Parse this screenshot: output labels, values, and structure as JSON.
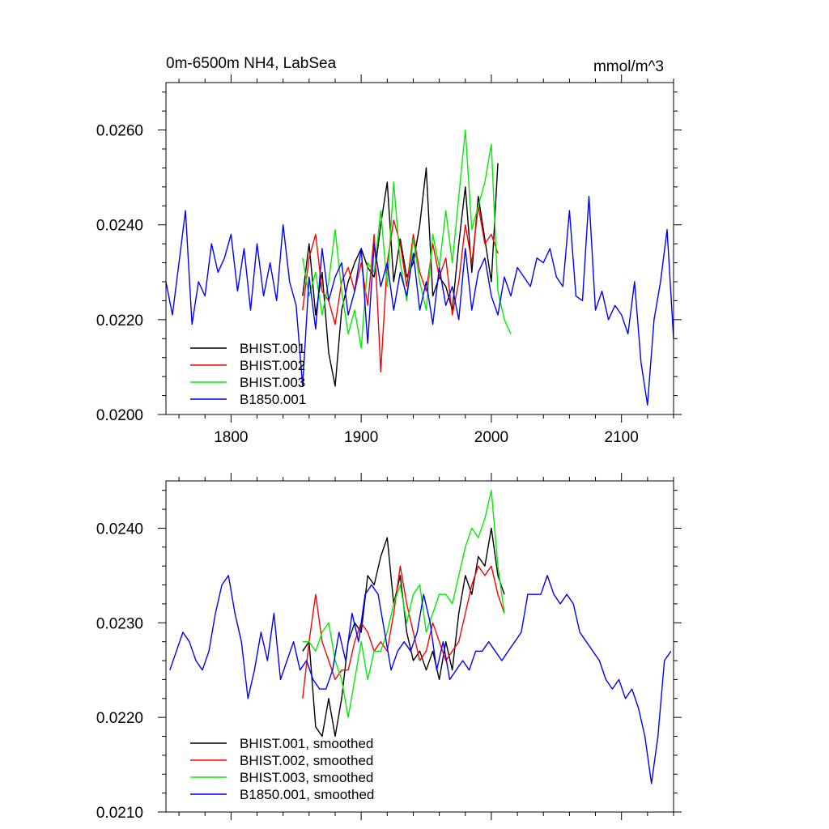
{
  "chart_data": [
    {
      "type": "line",
      "title_left": "0m-6500m NH4, LabSea",
      "title_right": "mmol/m^3",
      "xlabel": "",
      "ylabel": "",
      "xlim": [
        1750,
        2140
      ],
      "ylim": [
        0.02,
        0.027
      ],
      "x_ticks": [
        1800,
        1900,
        2000,
        2100
      ],
      "x_tick_labels": [
        "1800",
        "1900",
        "2000",
        "2100"
      ],
      "y_ticks": [
        0.02,
        0.022,
        0.024,
        0.026
      ],
      "y_tick_labels": [
        "0.0200",
        "0.0220",
        "0.0240",
        "0.0260"
      ],
      "grid": false,
      "legend_position": "bottom-left",
      "series": [
        {
          "name": "BHIST.001",
          "color": "#000000",
          "x": [
            1855,
            1860,
            1865,
            1870,
            1875,
            1880,
            1885,
            1890,
            1895,
            1900,
            1905,
            1910,
            1915,
            1920,
            1925,
            1930,
            1935,
            1940,
            1945,
            1950,
            1955,
            1960,
            1965,
            1970,
            1975,
            1980,
            1985,
            1990,
            1995,
            2000,
            2005
          ],
          "y": [
            0.0225,
            0.0236,
            0.0221,
            0.023,
            0.0213,
            0.0206,
            0.0222,
            0.0228,
            0.0232,
            0.0235,
            0.0231,
            0.0229,
            0.024,
            0.0249,
            0.0228,
            0.0237,
            0.0229,
            0.0232,
            0.024,
            0.0252,
            0.0225,
            0.0229,
            0.0227,
            0.0222,
            0.0236,
            0.0248,
            0.023,
            0.0246,
            0.0237,
            0.0228,
            0.0253
          ]
        },
        {
          "name": "BHIST.002",
          "color": "#ff0000",
          "x": [
            1855,
            1860,
            1865,
            1870,
            1875,
            1880,
            1885,
            1890,
            1895,
            1900,
            1905,
            1910,
            1915,
            1920,
            1925,
            1930,
            1935,
            1940,
            1945,
            1950,
            1955,
            1960,
            1965,
            1970,
            1975,
            1980,
            1985,
            1990,
            1995,
            2000,
            2005
          ],
          "y": [
            0.0222,
            0.0233,
            0.0238,
            0.0226,
            0.0224,
            0.0219,
            0.0228,
            0.0231,
            0.0226,
            0.0232,
            0.0223,
            0.0238,
            0.0209,
            0.0232,
            0.0241,
            0.0236,
            0.0227,
            0.0238,
            0.023,
            0.0226,
            0.0236,
            0.0229,
            0.0233,
            0.0221,
            0.0228,
            0.024,
            0.0232,
            0.0244,
            0.0236,
            0.0238,
            0.0234
          ]
        },
        {
          "name": "BHIST.003",
          "color": "#00ee00",
          "x": [
            1855,
            1860,
            1865,
            1870,
            1875,
            1880,
            1885,
            1890,
            1895,
            1900,
            1905,
            1910,
            1915,
            1920,
            1925,
            1930,
            1935,
            1940,
            1945,
            1950,
            1955,
            1960,
            1965,
            1970,
            1975,
            1980,
            1985,
            1990,
            1995,
            2000,
            2005,
            2010,
            2015
          ],
          "y": [
            0.0233,
            0.0225,
            0.023,
            0.0221,
            0.0228,
            0.0239,
            0.0226,
            0.0217,
            0.0222,
            0.0214,
            0.0232,
            0.023,
            0.0243,
            0.0227,
            0.0249,
            0.0232,
            0.0224,
            0.0237,
            0.0228,
            0.0222,
            0.0238,
            0.0231,
            0.0243,
            0.0232,
            0.0246,
            0.026,
            0.0239,
            0.0244,
            0.0249,
            0.0257,
            0.0226,
            0.022,
            0.0217
          ]
        },
        {
          "name": "B1850.001",
          "color": "#0000ff",
          "x": [
            1750,
            1755,
            1760,
            1765,
            1770,
            1775,
            1780,
            1785,
            1790,
            1795,
            1800,
            1805,
            1810,
            1815,
            1820,
            1825,
            1830,
            1835,
            1840,
            1845,
            1850,
            1855,
            1860,
            1865,
            1870,
            1875,
            1880,
            1885,
            1890,
            1895,
            1900,
            1905,
            1910,
            1915,
            1920,
            1925,
            1930,
            1935,
            1940,
            1945,
            1950,
            1955,
            1960,
            1965,
            1970,
            1975,
            1980,
            1985,
            1990,
            1995,
            2000,
            2005,
            2010,
            2015,
            2020,
            2025,
            2030,
            2035,
            2040,
            2045,
            2050,
            2055,
            2060,
            2065,
            2070,
            2075,
            2080,
            2085,
            2090,
            2095,
            2100,
            2105,
            2110,
            2115,
            2120,
            2125,
            2130,
            2135,
            2140
          ],
          "y": [
            0.0228,
            0.0221,
            0.0232,
            0.0243,
            0.0219,
            0.0228,
            0.0225,
            0.0236,
            0.023,
            0.0233,
            0.0238,
            0.0226,
            0.0235,
            0.0222,
            0.0236,
            0.0225,
            0.0232,
            0.0224,
            0.024,
            0.0228,
            0.0223,
            0.0206,
            0.0229,
            0.0218,
            0.0235,
            0.0224,
            0.0229,
            0.0232,
            0.0221,
            0.0226,
            0.0235,
            0.0215,
            0.0236,
            0.0227,
            0.0232,
            0.0222,
            0.023,
            0.0225,
            0.0234,
            0.0222,
            0.0228,
            0.0219,
            0.0231,
            0.0223,
            0.0227,
            0.022,
            0.0235,
            0.0222,
            0.023,
            0.0233,
            0.0225,
            0.0221,
            0.0229,
            0.0225,
            0.0231,
            0.0229,
            0.0227,
            0.0233,
            0.0232,
            0.0235,
            0.0229,
            0.0227,
            0.0243,
            0.0225,
            0.0224,
            0.0246,
            0.0222,
            0.0226,
            0.022,
            0.0223,
            0.0221,
            0.0217,
            0.0228,
            0.0211,
            0.0202,
            0.022,
            0.0228,
            0.0239,
            0.0216
          ]
        }
      ],
      "legend": [
        "BHIST.001",
        "BHIST.002",
        "BHIST.003",
        "B1850.001"
      ]
    },
    {
      "type": "line",
      "title_left": "",
      "title_right": "",
      "xlabel": "",
      "ylabel": "",
      "xlim": [
        1750,
        2140
      ],
      "ylim": [
        0.021,
        0.0245
      ],
      "x_ticks": [
        1800,
        1900,
        2000,
        2100
      ],
      "x_tick_labels": [],
      "y_ticks": [
        0.021,
        0.022,
        0.023,
        0.024
      ],
      "y_tick_labels": [
        "0.0210",
        "0.0220",
        "0.0230",
        "0.0240"
      ],
      "grid": false,
      "legend_position": "bottom-left",
      "series": [
        {
          "name": "BHIST.001, smoothed",
          "color": "#000000",
          "x": [
            1855,
            1860,
            1865,
            1870,
            1875,
            1880,
            1885,
            1890,
            1895,
            1900,
            1905,
            1910,
            1915,
            1920,
            1925,
            1930,
            1935,
            1940,
            1945,
            1950,
            1955,
            1960,
            1965,
            1970,
            1975,
            1980,
            1985,
            1990,
            1995,
            2000,
            2005,
            2010
          ],
          "y": [
            0.0227,
            0.0228,
            0.0219,
            0.0218,
            0.0222,
            0.0218,
            0.0222,
            0.0228,
            0.023,
            0.0229,
            0.0235,
            0.0234,
            0.0237,
            0.0239,
            0.0232,
            0.0235,
            0.0229,
            0.0226,
            0.0227,
            0.0225,
            0.0227,
            0.0224,
            0.0228,
            0.0225,
            0.0231,
            0.0235,
            0.0233,
            0.0237,
            0.0236,
            0.024,
            0.0235,
            0.0233
          ]
        },
        {
          "name": "BHIST.002, smoothed",
          "color": "#ff0000",
          "x": [
            1855,
            1860,
            1865,
            1870,
            1875,
            1880,
            1885,
            1890,
            1895,
            1900,
            1905,
            1910,
            1915,
            1920,
            1925,
            1930,
            1935,
            1940,
            1945,
            1950,
            1955,
            1960,
            1965,
            1970,
            1975,
            1980,
            1985,
            1990,
            1995,
            2000,
            2005,
            2010
          ],
          "y": [
            0.0222,
            0.0228,
            0.0233,
            0.0228,
            0.0226,
            0.0224,
            0.0225,
            0.0225,
            0.0228,
            0.023,
            0.0229,
            0.0227,
            0.0228,
            0.0227,
            0.0231,
            0.0236,
            0.0232,
            0.0229,
            0.0226,
            0.0227,
            0.023,
            0.0228,
            0.0226,
            0.0227,
            0.0228,
            0.0231,
            0.0234,
            0.0236,
            0.0235,
            0.0236,
            0.0233,
            0.0231
          ]
        },
        {
          "name": "BHIST.003, smoothed",
          "color": "#00ee00",
          "x": [
            1855,
            1860,
            1865,
            1870,
            1875,
            1880,
            1885,
            1890,
            1895,
            1900,
            1905,
            1910,
            1915,
            1920,
            1925,
            1930,
            1935,
            1940,
            1945,
            1950,
            1955,
            1960,
            1965,
            1970,
            1975,
            1980,
            1985,
            1990,
            1995,
            2000,
            2005,
            2010
          ],
          "y": [
            0.0228,
            0.0228,
            0.0227,
            0.0229,
            0.023,
            0.0226,
            0.0224,
            0.022,
            0.0224,
            0.0228,
            0.0224,
            0.0227,
            0.0227,
            0.0229,
            0.0232,
            0.0234,
            0.023,
            0.0233,
            0.0234,
            0.0229,
            0.0231,
            0.0233,
            0.0233,
            0.0232,
            0.0235,
            0.0238,
            0.024,
            0.0239,
            0.0241,
            0.0244,
            0.0236,
            0.0231
          ]
        },
        {
          "name": "B1850.001, smoothed",
          "color": "#0000ff",
          "x": [
            1753,
            1758,
            1763,
            1768,
            1773,
            1778,
            1783,
            1788,
            1793,
            1798,
            1803,
            1808,
            1813,
            1818,
            1823,
            1828,
            1833,
            1838,
            1843,
            1848,
            1853,
            1858,
            1863,
            1868,
            1873,
            1878,
            1883,
            1888,
            1893,
            1898,
            1903,
            1908,
            1913,
            1918,
            1923,
            1928,
            1933,
            1938,
            1943,
            1948,
            1953,
            1958,
            1963,
            1968,
            1973,
            1978,
            1983,
            1988,
            1993,
            1998,
            2003,
            2008,
            2013,
            2018,
            2023,
            2028,
            2033,
            2038,
            2043,
            2048,
            2053,
            2058,
            2063,
            2068,
            2073,
            2078,
            2083,
            2088,
            2093,
            2098,
            2103,
            2108,
            2113,
            2118,
            2123,
            2128,
            2133,
            2138
          ],
          "y": [
            0.0225,
            0.0227,
            0.0229,
            0.0228,
            0.0226,
            0.0225,
            0.0227,
            0.0231,
            0.0234,
            0.0235,
            0.0231,
            0.0228,
            0.0222,
            0.0225,
            0.0229,
            0.0226,
            0.0231,
            0.0224,
            0.0226,
            0.0228,
            0.0225,
            0.0226,
            0.0224,
            0.0223,
            0.0223,
            0.0225,
            0.0229,
            0.0226,
            0.0231,
            0.0228,
            0.0233,
            0.0234,
            0.0233,
            0.0229,
            0.0225,
            0.0227,
            0.0228,
            0.0227,
            0.0229,
            0.0233,
            0.023,
            0.0225,
            0.0228,
            0.0224,
            0.0225,
            0.0226,
            0.0225,
            0.0227,
            0.0227,
            0.0228,
            0.0227,
            0.0226,
            0.0227,
            0.0228,
            0.0229,
            0.0233,
            0.0233,
            0.0233,
            0.0235,
            0.0233,
            0.0232,
            0.0233,
            0.0232,
            0.0229,
            0.0228,
            0.0227,
            0.0226,
            0.0224,
            0.0223,
            0.0224,
            0.0222,
            0.0223,
            0.0221,
            0.0218,
            0.0213,
            0.0218,
            0.0226,
            0.0227
          ]
        }
      ],
      "legend": [
        "BHIST.001, smoothed",
        "BHIST.002, smoothed",
        "BHIST.003, smoothed",
        "B1850.001, smoothed"
      ]
    }
  ]
}
